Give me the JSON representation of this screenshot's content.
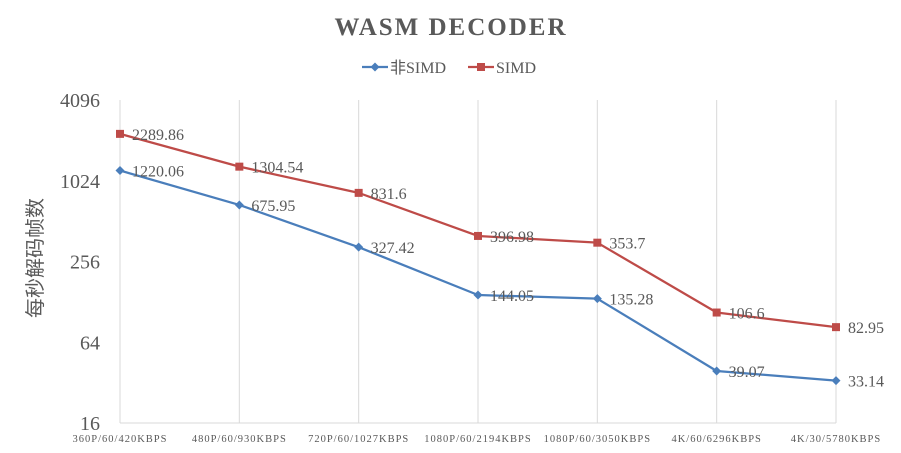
{
  "chart_data": {
    "type": "line",
    "title": "WASM  DECODER",
    "ylabel": "每秒解码帧数",
    "xlabel": "",
    "y_scale": "log2",
    "ylim": [
      16,
      4096
    ],
    "yticks": [
      "16",
      "64",
      "256",
      "1024",
      "4096"
    ],
    "ytick_values": [
      16,
      64,
      256,
      1024,
      4096
    ],
    "grid": "vertical",
    "legend_position": "top-center",
    "categories": [
      "360P/60/420KBPS",
      "480P/60/930KBPS",
      "720P/60/1027KBPS",
      "1080P/60/2194KBPS",
      "1080P/60/3050KBPS",
      "4K/60/6296KBPS",
      "4K/30/5780KBPS"
    ],
    "series": [
      {
        "name": "非SIMD",
        "color": "#4a7ebb",
        "marker": "diamond",
        "values": [
          1220.06,
          675.95,
          327.42,
          144.05,
          135.28,
          39.07,
          33.14
        ],
        "labels": [
          "1220.06",
          "675.95",
          "327.42",
          "144.05",
          "135.28",
          "39.07",
          "33.14"
        ]
      },
      {
        "name": "SIMD",
        "color": "#be4b48",
        "marker": "square",
        "values": [
          2289.86,
          1304.54,
          831.6,
          396.98,
          353.7,
          106.6,
          82.95
        ],
        "labels": [
          "2289.86",
          "1304.54",
          "831.6",
          "396.98",
          "353.7",
          "106.6",
          "82.95"
        ]
      }
    ]
  }
}
